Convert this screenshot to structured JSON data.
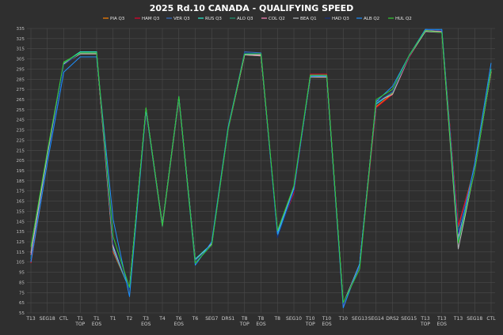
{
  "chart_data": {
    "type": "line",
    "title": "2025 Rd.10 CANADA - QUALIFYING SPEED",
    "xlabel": "",
    "ylabel": "",
    "ylim": [
      55,
      335
    ],
    "yticks": [
      55,
      65,
      75,
      85,
      95,
      105,
      115,
      125,
      135,
      145,
      155,
      165,
      175,
      185,
      195,
      205,
      215,
      225,
      235,
      245,
      255,
      265,
      275,
      285,
      295,
      305,
      315,
      325,
      335
    ],
    "grid": true,
    "legend_position": "top-center",
    "categories": [
      [
        "T13"
      ],
      [
        "SEG18"
      ],
      [
        "CTL"
      ],
      [
        "T1",
        "TOP"
      ],
      [
        "T1",
        "EOS"
      ],
      [
        "T1"
      ],
      [
        "T2"
      ],
      [
        "T3",
        "EOS"
      ],
      [
        "T4"
      ],
      [
        "T6",
        "EOS"
      ],
      [
        "T6"
      ],
      [
        "SEG7"
      ],
      [
        "DRS1"
      ],
      [
        "T8",
        "TOP"
      ],
      [
        "T8",
        "EOS"
      ],
      [
        "T8"
      ],
      [
        "SEG10"
      ],
      [
        "T10",
        "TOP"
      ],
      [
        "T10",
        "EOS"
      ],
      [
        "T10"
      ],
      [
        "SEG13"
      ],
      [
        "SEG14"
      ],
      [
        "DRS2"
      ],
      [
        "SEG15"
      ],
      [
        "T13",
        "TOP"
      ],
      [
        "T13",
        "EOS"
      ],
      [
        "T13"
      ],
      [
        "SEG18"
      ],
      [
        "CTL"
      ]
    ],
    "series": [
      {
        "name": "PIA Q3",
        "color": "#ff8000",
        "values": [
          104,
          204,
          300,
          310,
          310,
          115,
          79,
          255,
          140,
          265,
          107,
          122,
          235,
          309,
          308,
          132,
          176,
          288,
          287,
          63,
          102,
          258,
          271,
          307,
          333,
          332,
          140,
          198,
          292
        ]
      },
      {
        "name": "HAM Q3",
        "color": "#e8002d",
        "values": [
          104,
          205,
          300,
          311,
          311,
          116,
          79,
          256,
          141,
          266,
          106,
          123,
          236,
          310,
          309,
          131,
          173,
          290,
          290,
          62,
          101,
          257,
          270,
          306,
          333,
          332,
          141,
          196,
          293
        ]
      },
      {
        "name": "VER Q3",
        "color": "#3671c6",
        "values": [
          106,
          206,
          299,
          311,
          311,
          117,
          78,
          256,
          141,
          266,
          107,
          122,
          236,
          312,
          311,
          130,
          175,
          288,
          288,
          63,
          101,
          260,
          272,
          307,
          334,
          333,
          135,
          197,
          294
        ]
      },
      {
        "name": "RUS Q3",
        "color": "#27f4d2",
        "values": [
          108,
          208,
          301,
          312,
          312,
          118,
          78,
          256,
          141,
          267,
          108,
          123,
          237,
          310,
          309,
          132,
          176,
          289,
          288,
          64,
          103,
          261,
          272,
          308,
          334,
          333,
          130,
          197,
          295
        ]
      },
      {
        "name": "ALO Q3",
        "color": "#229971",
        "values": [
          110,
          210,
          301,
          311,
          311,
          119,
          79,
          255,
          140,
          266,
          106,
          122,
          236,
          310,
          310,
          133,
          177,
          289,
          289,
          64,
          103,
          262,
          272,
          307,
          333,
          332,
          131,
          198,
          294
        ]
      },
      {
        "name": "COL Q2",
        "color": "#ff87bc",
        "values": [
          112,
          211,
          300,
          310,
          310,
          120,
          79,
          255,
          141,
          266,
          106,
          123,
          236,
          309,
          309,
          134,
          177,
          288,
          288,
          64,
          102,
          262,
          273,
          307,
          333,
          332,
          129,
          198,
          293
        ]
      },
      {
        "name": "BEA Q1",
        "color": "#b6babd",
        "values": [
          114,
          212,
          300,
          310,
          310,
          121,
          79,
          256,
          142,
          267,
          106,
          123,
          236,
          309,
          308,
          134,
          178,
          287,
          287,
          64,
          103,
          263,
          270,
          307,
          332,
          331,
          118,
          196,
          293
        ]
      },
      {
        "name": "HAD Q3",
        "color": "#163080",
        "values": [
          107,
          205,
          299,
          311,
          311,
          123,
          78,
          255,
          141,
          266,
          106,
          122,
          235,
          311,
          310,
          129,
          175,
          288,
          288,
          63,
          102,
          262,
          273,
          307,
          334,
          333,
          133,
          197,
          294
        ]
      },
      {
        "name": "ALB Q2",
        "color": "#1e90ff",
        "values": [
          105,
          203,
          292,
          307,
          307,
          147,
          71,
          255,
          141,
          268,
          102,
          125,
          238,
          310,
          310,
          133,
          177,
          288,
          288,
          60,
          103,
          263,
          278,
          308,
          334,
          334,
          126,
          202,
          301
        ]
      },
      {
        "name": "HUL Q2",
        "color": "#33cc33",
        "values": [
          120,
          214,
          302,
          311,
          311,
          130,
          80,
          257,
          141,
          268,
          104,
          122,
          236,
          310,
          310,
          136,
          180,
          289,
          289,
          65,
          98,
          265,
          275,
          308,
          333,
          331,
          124,
          195,
          294
        ]
      }
    ]
  }
}
